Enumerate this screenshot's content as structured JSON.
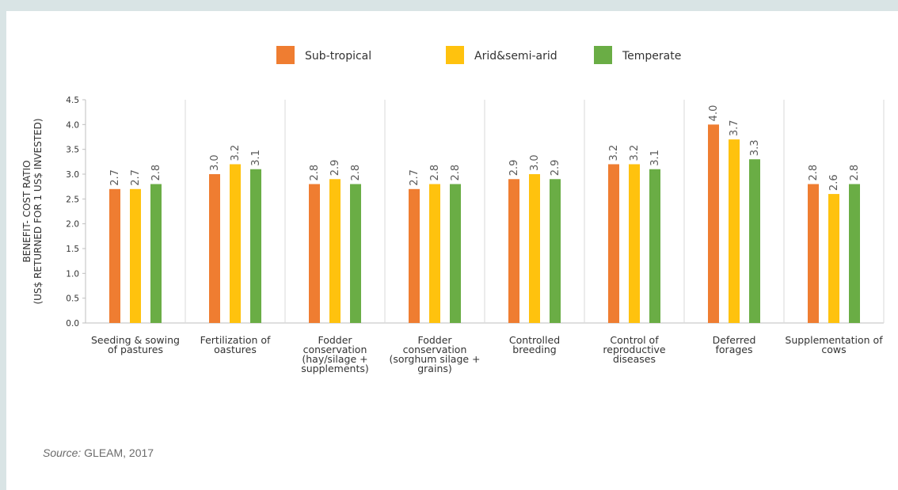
{
  "chart_data": {
    "type": "bar",
    "ylabel_line1": "BENEFIT- COST RATIO",
    "ylabel_line2": "(US$ RETURNED FOR 1 US$ INVESTED)",
    "ylim": [
      0,
      4.5
    ],
    "yticks": [
      "0.0",
      "0.5",
      "1.0",
      "1.5",
      "2.0",
      "2.5",
      "3.0",
      "3.5",
      "4.0",
      "4.5"
    ],
    "legend_position": "top-center",
    "categories": [
      [
        "Seeding & sowing",
        "of pastures"
      ],
      [
        "Fertilization of",
        "oastures"
      ],
      [
        "Fodder",
        "conservation",
        "(hay/silage +",
        "supplements)"
      ],
      [
        "Fodder",
        "conservation",
        "(sorghum silage +",
        "grains)"
      ],
      [
        "Controlled",
        "breeding"
      ],
      [
        "Control of",
        "reproductive",
        "diseases"
      ],
      [
        "Deferred",
        "forages"
      ],
      [
        "Supplementation of",
        "cows"
      ]
    ],
    "series": [
      {
        "name": "Sub-tropical",
        "color": "#ef7d31",
        "values": [
          2.7,
          3.0,
          2.8,
          2.7,
          2.9,
          3.2,
          4.0,
          2.8
        ],
        "labels": [
          "2.7",
          "3.0",
          "2.8",
          "2.7",
          "2.9",
          "3.2",
          "4.0",
          "2.8"
        ]
      },
      {
        "name": "Arid&semi-arid",
        "color": "#ffc20e",
        "values": [
          2.7,
          3.2,
          2.9,
          2.8,
          3.0,
          3.2,
          3.7,
          2.6
        ],
        "labels": [
          "2.7",
          "3.2",
          "2.9",
          "2.8",
          "3.0",
          "3.2",
          "3.7",
          "2.6"
        ]
      },
      {
        "name": "Temperate",
        "color": "#6aad45",
        "values": [
          2.8,
          3.1,
          2.8,
          2.8,
          2.9,
          3.1,
          3.3,
          2.8
        ],
        "labels": [
          "2.8",
          "3.1",
          "2.8",
          "2.8",
          "2.9",
          "3.1",
          "3.3",
          "2.8"
        ]
      }
    ],
    "grid": "vertical-separators"
  },
  "source": {
    "label": "Source:",
    "text": " GLEAM, 2017"
  }
}
